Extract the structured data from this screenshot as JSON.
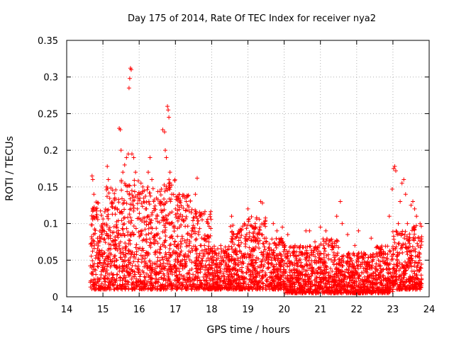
{
  "chart_data": {
    "type": "scatter",
    "title": "Day 175 of 2014, Rate Of TEC Index for receiver nya2",
    "xlabel": "GPS time / hours",
    "ylabel": "ROTI / TECUs",
    "xlim": [
      14,
      24
    ],
    "ylim": [
      0,
      0.35
    ],
    "grid": true,
    "marker": "+",
    "marker_color": "#ff0000",
    "x_ticks": [
      "14",
      "15",
      "16",
      "17",
      "18",
      "19",
      "20",
      "21",
      "22",
      "23",
      "24"
    ],
    "y_ticks": [
      "0",
      "0.05",
      "0.1",
      "0.15",
      "0.2",
      "0.25",
      "0.3",
      "0.35"
    ],
    "series": [
      {
        "name": "ROTI",
        "points": [
          [
            14.65,
            0.02
          ],
          [
            14.7,
            0.165
          ],
          [
            14.72,
            0.16
          ],
          [
            14.75,
            0.14
          ],
          [
            14.8,
            0.12
          ],
          [
            14.85,
            0.08
          ],
          [
            14.9,
            0.05
          ],
          [
            14.95,
            0.03
          ],
          [
            15.0,
            0.1
          ],
          [
            15.05,
            0.06
          ],
          [
            15.1,
            0.15
          ],
          [
            15.12,
            0.178
          ],
          [
            15.15,
            0.16
          ],
          [
            15.2,
            0.09
          ],
          [
            15.3,
            0.07
          ],
          [
            15.4,
            0.12
          ],
          [
            15.45,
            0.23
          ],
          [
            15.48,
            0.228
          ],
          [
            15.5,
            0.2
          ],
          [
            15.55,
            0.17
          ],
          [
            15.6,
            0.18
          ],
          [
            15.65,
            0.19
          ],
          [
            15.7,
            0.195
          ],
          [
            15.72,
            0.285
          ],
          [
            15.74,
            0.298
          ],
          [
            15.76,
            0.312
          ],
          [
            15.78,
            0.31
          ],
          [
            15.8,
            0.195
          ],
          [
            15.85,
            0.19
          ],
          [
            15.9,
            0.17
          ],
          [
            15.95,
            0.12
          ],
          [
            16.0,
            0.14
          ],
          [
            16.05,
            0.155
          ],
          [
            16.1,
            0.15
          ],
          [
            16.2,
            0.12
          ],
          [
            16.25,
            0.17
          ],
          [
            16.3,
            0.19
          ],
          [
            16.35,
            0.16
          ],
          [
            16.4,
            0.13
          ],
          [
            16.5,
            0.11
          ],
          [
            16.6,
            0.13
          ],
          [
            16.65,
            0.228
          ],
          [
            16.7,
            0.225
          ],
          [
            16.72,
            0.2
          ],
          [
            16.75,
            0.19
          ],
          [
            16.78,
            0.26
          ],
          [
            16.8,
            0.255
          ],
          [
            16.82,
            0.245
          ],
          [
            16.85,
            0.17
          ],
          [
            16.9,
            0.14
          ],
          [
            17.0,
            0.12
          ],
          [
            17.1,
            0.14
          ],
          [
            17.2,
            0.11
          ],
          [
            17.3,
            0.13
          ],
          [
            17.45,
            0.09
          ],
          [
            17.55,
            0.14
          ],
          [
            17.6,
            0.162
          ],
          [
            17.7,
            0.11
          ],
          [
            17.8,
            0.07
          ],
          [
            17.9,
            0.06
          ],
          [
            18.0,
            0.05
          ],
          [
            18.1,
            0.06
          ],
          [
            18.25,
            0.07
          ],
          [
            18.4,
            0.06
          ],
          [
            18.55,
            0.11
          ],
          [
            18.65,
            0.08
          ],
          [
            18.75,
            0.09
          ],
          [
            18.9,
            0.1
          ],
          [
            19.0,
            0.12
          ],
          [
            19.2,
            0.1
          ],
          [
            19.35,
            0.13
          ],
          [
            19.4,
            0.128
          ],
          [
            19.5,
            0.08
          ],
          [
            19.7,
            0.1
          ],
          [
            19.8,
            0.09
          ],
          [
            19.95,
            0.095
          ],
          [
            20.1,
            0.085
          ],
          [
            20.3,
            0.07
          ],
          [
            20.5,
            0.06
          ],
          [
            20.6,
            0.09
          ],
          [
            20.7,
            0.09
          ],
          [
            20.85,
            0.075
          ],
          [
            21.0,
            0.095
          ],
          [
            21.15,
            0.09
          ],
          [
            21.3,
            0.07
          ],
          [
            21.45,
            0.11
          ],
          [
            21.55,
            0.13
          ],
          [
            21.6,
            0.1
          ],
          [
            21.75,
            0.085
          ],
          [
            21.95,
            0.07
          ],
          [
            22.05,
            0.09
          ],
          [
            22.2,
            0.06
          ],
          [
            22.4,
            0.08
          ],
          [
            22.6,
            0.05
          ],
          [
            22.75,
            0.06
          ],
          [
            22.9,
            0.11
          ],
          [
            22.98,
            0.147
          ],
          [
            23.02,
            0.175
          ],
          [
            23.05,
            0.178
          ],
          [
            23.08,
            0.172
          ],
          [
            23.15,
            0.1
          ],
          [
            23.2,
            0.13
          ],
          [
            23.25,
            0.155
          ],
          [
            23.3,
            0.16
          ],
          [
            23.35,
            0.14
          ],
          [
            23.4,
            0.1
          ],
          [
            23.5,
            0.125
          ],
          [
            23.55,
            0.13
          ],
          [
            23.6,
            0.12
          ],
          [
            23.65,
            0.11
          ],
          [
            23.7,
            0.08
          ],
          [
            23.75,
            0.04
          ]
        ]
      }
    ],
    "dense_band": {
      "note": "dense cloud of points between these hours and ROTI bounds",
      "segments": [
        {
          "x": [
            14.65,
            15.0
          ],
          "y": [
            0.01,
            0.13
          ]
        },
        {
          "x": [
            15.0,
            15.5
          ],
          "y": [
            0.01,
            0.15
          ]
        },
        {
          "x": [
            15.5,
            16.0
          ],
          "y": [
            0.01,
            0.16
          ]
        },
        {
          "x": [
            16.0,
            16.5
          ],
          "y": [
            0.01,
            0.15
          ]
        },
        {
          "x": [
            16.5,
            17.0
          ],
          "y": [
            0.01,
            0.16
          ]
        },
        {
          "x": [
            17.0,
            17.5
          ],
          "y": [
            0.01,
            0.14
          ]
        },
        {
          "x": [
            17.5,
            18.0
          ],
          "y": [
            0.01,
            0.12
          ]
        },
        {
          "x": [
            18.0,
            18.5
          ],
          "y": [
            0.01,
            0.07
          ]
        },
        {
          "x": [
            18.5,
            19.0
          ],
          "y": [
            0.01,
            0.1
          ]
        },
        {
          "x": [
            19.0,
            19.5
          ],
          "y": [
            0.01,
            0.11
          ]
        },
        {
          "x": [
            19.5,
            20.0
          ],
          "y": [
            0.01,
            0.08
          ]
        },
        {
          "x": [
            20.0,
            20.5
          ],
          "y": [
            0.005,
            0.07
          ]
        },
        {
          "x": [
            20.5,
            21.0
          ],
          "y": [
            0.005,
            0.07
          ]
        },
        {
          "x": [
            21.0,
            21.5
          ],
          "y": [
            0.005,
            0.08
          ]
        },
        {
          "x": [
            21.5,
            22.0
          ],
          "y": [
            0.005,
            0.06
          ]
        },
        {
          "x": [
            22.0,
            22.5
          ],
          "y": [
            0.005,
            0.06
          ]
        },
        {
          "x": [
            22.5,
            23.0
          ],
          "y": [
            0.005,
            0.07
          ]
        },
        {
          "x": [
            23.0,
            23.5
          ],
          "y": [
            0.01,
            0.09
          ]
        },
        {
          "x": [
            23.5,
            23.8
          ],
          "y": [
            0.01,
            0.1
          ]
        }
      ]
    }
  }
}
